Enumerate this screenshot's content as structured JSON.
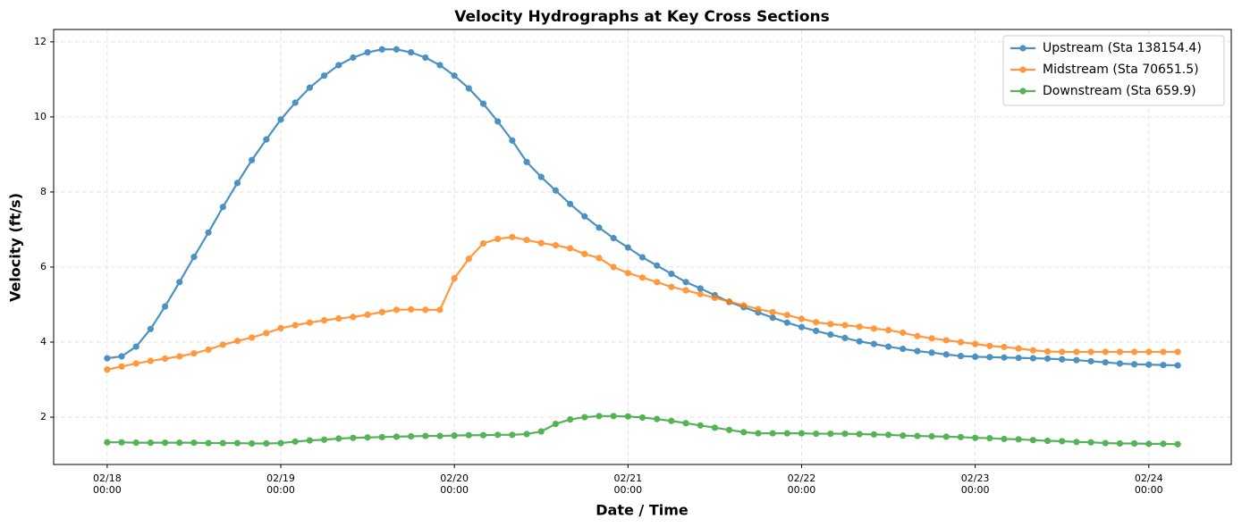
{
  "chart_data": {
    "type": "line",
    "title": "Velocity Hydrographs at Key Cross Sections",
    "x_label": "Date / Time",
    "y_label": "Velocity (ft/s)",
    "categories": [
      "02/18\n00:00",
      null,
      null,
      null,
      null,
      null,
      null,
      null,
      null,
      null,
      null,
      null,
      "02/19\n00:00",
      null,
      null,
      null,
      null,
      null,
      null,
      null,
      null,
      null,
      null,
      null,
      "02/20\n00:00",
      null,
      null,
      null,
      null,
      null,
      null,
      null,
      null,
      null,
      null,
      null,
      "02/21\n00:00",
      null,
      null,
      null,
      null,
      null,
      null,
      null,
      null,
      null,
      null,
      null,
      "02/22\n00:00",
      null,
      null,
      null,
      null,
      null,
      null,
      null,
      null,
      null,
      null,
      null,
      "02/23\n00:00",
      null,
      null,
      null,
      null,
      null,
      null,
      null,
      null,
      null,
      null,
      null,
      "02/24\n00:00",
      null,
      null
    ],
    "series": [
      {
        "name": "Upstream (Sta 138154.4)",
        "color": "#1f77b4",
        "values": [
          3.57,
          3.62,
          3.88,
          4.35,
          4.95,
          5.6,
          6.27,
          6.92,
          7.6,
          8.24,
          8.85,
          9.4,
          9.93,
          10.38,
          10.78,
          11.1,
          11.38,
          11.58,
          11.72,
          11.8,
          11.8,
          11.72,
          11.58,
          11.38,
          11.1,
          10.76,
          10.35,
          9.88,
          9.37,
          8.8,
          8.4,
          8.04,
          7.68,
          7.35,
          7.05,
          6.77,
          6.52,
          6.26,
          6.04,
          5.82,
          5.6,
          5.43,
          5.25,
          5.07,
          4.93,
          4.79,
          4.65,
          4.52,
          4.4,
          4.3,
          4.2,
          4.11,
          4.02,
          3.95,
          3.88,
          3.82,
          3.76,
          3.72,
          3.67,
          3.63,
          3.61,
          3.6,
          3.59,
          3.58,
          3.57,
          3.56,
          3.54,
          3.52,
          3.49,
          3.46,
          3.43,
          3.41,
          3.4,
          3.39,
          3.38
        ]
      },
      {
        "name": "Midstream (Sta 70651.5)",
        "color": "#ff7f0e",
        "values": [
          3.27,
          3.35,
          3.43,
          3.5,
          3.56,
          3.62,
          3.7,
          3.8,
          3.93,
          4.03,
          4.12,
          4.24,
          4.37,
          4.45,
          4.52,
          4.58,
          4.63,
          4.67,
          4.73,
          4.8,
          4.86,
          4.87,
          4.86,
          4.86,
          5.7,
          6.22,
          6.63,
          6.75,
          6.8,
          6.72,
          6.64,
          6.58,
          6.5,
          6.35,
          6.24,
          6.0,
          5.84,
          5.72,
          5.6,
          5.47,
          5.38,
          5.28,
          5.18,
          5.08,
          4.98,
          4.88,
          4.8,
          4.72,
          4.62,
          4.53,
          4.48,
          4.45,
          4.41,
          4.36,
          4.32,
          4.25,
          4.16,
          4.1,
          4.05,
          4.0,
          3.95,
          3.9,
          3.87,
          3.83,
          3.78,
          3.75,
          3.74,
          3.74,
          3.74,
          3.74,
          3.74,
          3.74,
          3.74,
          3.74,
          3.74
        ]
      },
      {
        "name": "Downstream (Sta 659.9)",
        "color": "#2ca02c",
        "values": [
          1.33,
          1.33,
          1.32,
          1.32,
          1.32,
          1.32,
          1.32,
          1.31,
          1.31,
          1.31,
          1.3,
          1.3,
          1.31,
          1.35,
          1.38,
          1.4,
          1.43,
          1.45,
          1.46,
          1.47,
          1.48,
          1.49,
          1.5,
          1.5,
          1.51,
          1.52,
          1.52,
          1.53,
          1.53,
          1.55,
          1.62,
          1.82,
          1.94,
          2.0,
          2.03,
          2.03,
          2.02,
          1.99,
          1.95,
          1.9,
          1.84,
          1.78,
          1.72,
          1.66,
          1.6,
          1.57,
          1.57,
          1.57,
          1.57,
          1.56,
          1.56,
          1.56,
          1.55,
          1.54,
          1.53,
          1.51,
          1.5,
          1.49,
          1.48,
          1.47,
          1.45,
          1.44,
          1.42,
          1.41,
          1.39,
          1.37,
          1.36,
          1.34,
          1.33,
          1.31,
          1.3,
          1.3,
          1.29,
          1.29,
          1.28
        ]
      }
    ],
    "ylim": [
      0.74,
      12.33
    ],
    "yticks": [
      2,
      4,
      6,
      8,
      10,
      12
    ],
    "grid": true,
    "legend": "upper right"
  }
}
